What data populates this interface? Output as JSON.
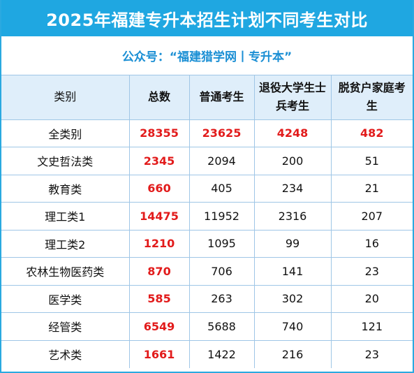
{
  "title": "2025年福建专升本招生计划不同考生对比",
  "subtitle": "公众号：“福建猎学网丨专升本”",
  "table": {
    "headers": [
      "类别",
      "总数",
      "普通考生",
      "退役大学生士兵考生",
      "脱贫户家庭考生"
    ],
    "rows": [
      {
        "category": "全类别",
        "total": "28355",
        "regular": "23625",
        "veteran": "4248",
        "poverty": "482"
      },
      {
        "category": "文史哲法类",
        "total": "2345",
        "regular": "2094",
        "veteran": "200",
        "poverty": "51"
      },
      {
        "category": "教育类",
        "total": "660",
        "regular": "405",
        "veteran": "234",
        "poverty": "21"
      },
      {
        "category": "理工类1",
        "total": "14475",
        "regular": "11952",
        "veteran": "2316",
        "poverty": "207"
      },
      {
        "category": "理工类2",
        "total": "1210",
        "regular": "1095",
        "veteran": "99",
        "poverty": "16"
      },
      {
        "category": "农林生物医药类",
        "total": "870",
        "regular": "706",
        "veteran": "141",
        "poverty": "23"
      },
      {
        "category": "医学类",
        "total": "585",
        "regular": "263",
        "veteran": "302",
        "poverty": "20"
      },
      {
        "category": "经管类",
        "total": "6549",
        "regular": "5688",
        "veteran": "740",
        "poverty": "121"
      },
      {
        "category": "艺术类",
        "total": "1661",
        "regular": "1422",
        "veteran": "216",
        "poverty": "23"
      }
    ]
  },
  "colors": {
    "title_bg": "#1fa7e1",
    "subtitle_text": "#1b8fd4",
    "header_bg": "#dfeefa",
    "highlight": "#e21b1b"
  }
}
